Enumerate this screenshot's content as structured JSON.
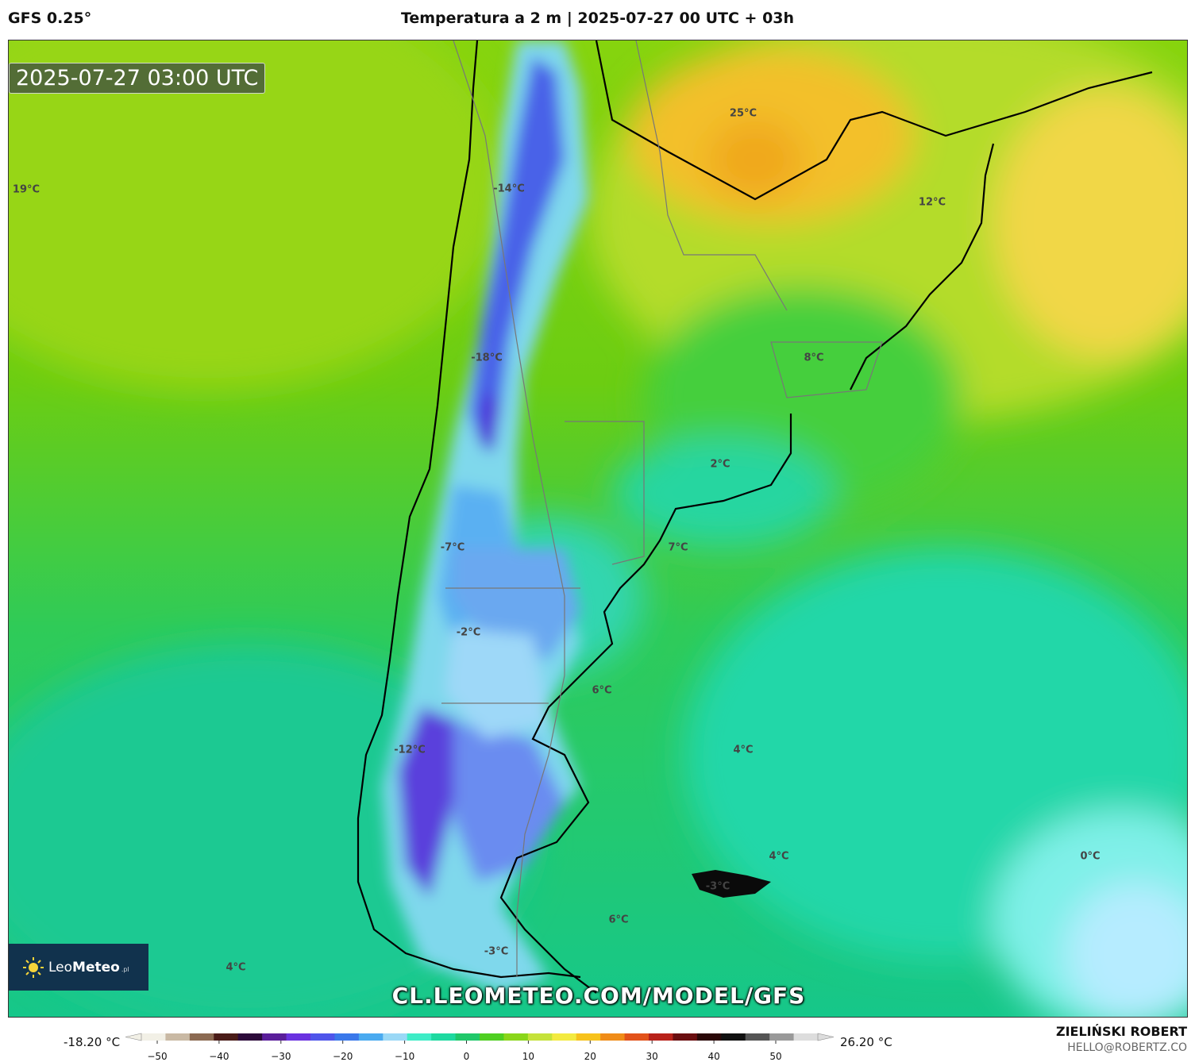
{
  "header": {
    "model": "GFS 0.25°",
    "title": "Temperatura a 2 m | 2025-07-27 00 UTC + 03h"
  },
  "map": {
    "timestamp": "2025-07-27 03:00 UTC",
    "labels": [
      "25°C",
      "19°C",
      "-14°C",
      "12°C",
      "-18°C",
      "8°C",
      "2°C",
      "-7°C",
      "7°C",
      "-2°C",
      "6°C",
      "-12°C",
      "4°C",
      "4°C",
      "0°C",
      "-3°C",
      "6°C",
      "-3°C",
      "4°C"
    ],
    "watermark": "CL.LEOMETEO.COM/MODEL/GFS",
    "logo": {
      "name_light": "Leo",
      "name_bold": "Meteo",
      "suffix": ".pl",
      "icon": "sun-icon"
    }
  },
  "legend": {
    "min": "-18.20 °C",
    "max": "26.20 °C",
    "ticks": [
      "−50",
      "−40",
      "−30",
      "−20",
      "−10",
      "0",
      "10",
      "20",
      "30",
      "40",
      "50"
    ],
    "colors": [
      "#f2f0e6",
      "#c9b9a4",
      "#8b6a52",
      "#4a1c18",
      "#2c0a3a",
      "#5a1e9a",
      "#6a32e0",
      "#4f55ea",
      "#3a78ea",
      "#4aaaf0",
      "#9ad8f6",
      "#3eecc6",
      "#1ed9a0",
      "#20c86a",
      "#4fcf22",
      "#8ad61a",
      "#c5e23a",
      "#f3ea40",
      "#f7c21c",
      "#f08c18",
      "#e2521a",
      "#b8221a",
      "#6a0e10",
      "#2a0808",
      "#111111",
      "#555555",
      "#999999",
      "#dddddd"
    ]
  },
  "author": {
    "name": "ZIELIŃSKI ROBERT",
    "email": "HELLO@ROBERTZ.CO"
  }
}
